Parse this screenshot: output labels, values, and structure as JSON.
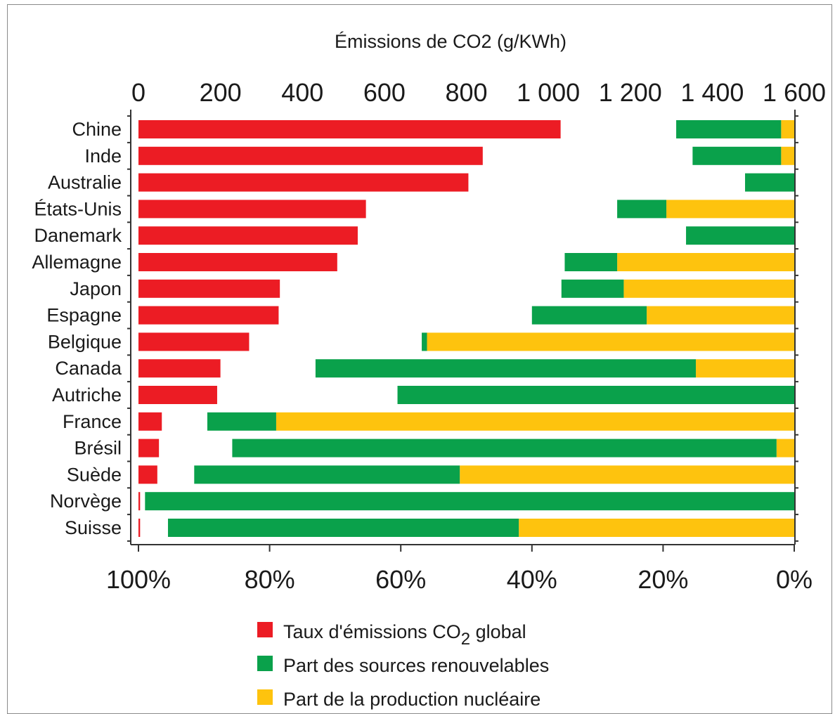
{
  "chart_data": {
    "type": "bar",
    "title": "Émissions de CO2 (g/KWh)",
    "top_axis": {
      "label": "Émissions de CO2 (g/KWh)",
      "range": [
        0,
        1600
      ],
      "ticks": [
        0,
        200,
        400,
        600,
        800,
        1000,
        1200,
        1400,
        1600
      ],
      "tick_labels": [
        "0",
        "200",
        "400",
        "600",
        "800",
        "1 000",
        "1 200",
        "1 400",
        "1 600"
      ]
    },
    "bottom_axis": {
      "range": [
        0,
        100
      ],
      "direction": "reversed",
      "ticks": [
        100,
        80,
        60,
        40,
        20,
        0
      ],
      "tick_labels": [
        "100%",
        "80%",
        "60%",
        "40%",
        "20%",
        "0%"
      ]
    },
    "categories": [
      "Chine",
      "Inde",
      "Australie",
      "États-Unis",
      "Danemark",
      "Allemagne",
      "Japon",
      "Espagne",
      "Belgique",
      "Canada",
      "Autriche",
      "France",
      "Brésil",
      "Suède",
      "Norvège",
      "Suisse"
    ],
    "series": [
      {
        "name": "Taux d'émissions CO2 global",
        "color": "#ec1c24",
        "axis": "top",
        "unit": "g/KWh",
        "values": [
          1030,
          840,
          805,
          555,
          535,
          485,
          345,
          342,
          270,
          200,
          192,
          57,
          50,
          46,
          4,
          4
        ]
      },
      {
        "name": "Part des sources renouvelables",
        "color": "#0aa14b",
        "axis": "bottom",
        "unit": "%",
        "values": [
          16,
          13.5,
          7.5,
          7.5,
          16.5,
          8,
          9.5,
          17.5,
          0.8,
          58,
          60.5,
          10.5,
          83,
          40.5,
          99,
          53.5
        ]
      },
      {
        "name": "Part de la production nucléaire",
        "color": "#fec30e",
        "axis": "bottom",
        "unit": "%",
        "values": [
          2,
          2,
          0,
          19.5,
          0,
          27,
          26,
          22.5,
          56,
          15,
          0,
          79,
          2.7,
          51,
          0,
          42
        ]
      }
    ],
    "legend": {
      "position": "bottom-center",
      "entries": [
        "Taux d'émissions CO2 global",
        "Part des sources renouvelables",
        "Part de la production nucléaire"
      ]
    },
    "grid": false
  }
}
